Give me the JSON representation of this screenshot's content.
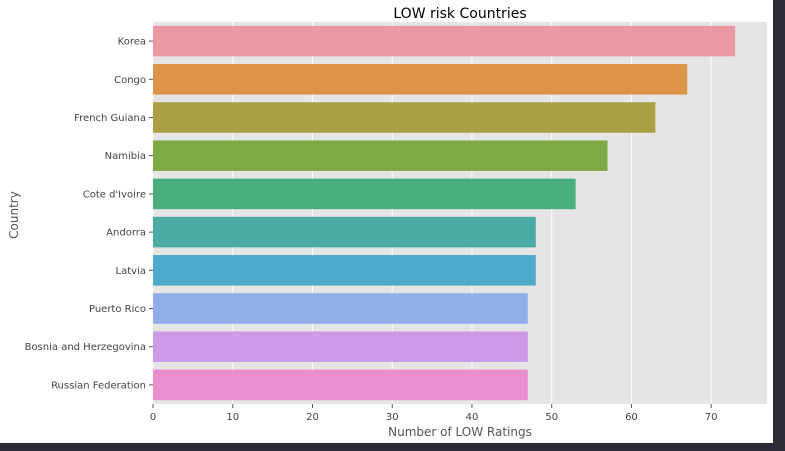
{
  "chart_data": {
    "type": "bar",
    "orientation": "horizontal",
    "title": "LOW risk Countries",
    "xlabel": "Number of LOW Ratings",
    "ylabel": "Country",
    "xlim": [
      0,
      77
    ],
    "xticks": [
      0,
      10,
      20,
      30,
      40,
      50,
      60,
      70
    ],
    "grid": true,
    "categories": [
      "Korea",
      "Congo",
      "French Guiana",
      "Namibia",
      "Cote d'Ivoire",
      "Andorra",
      "Latvia",
      "Puerto Rico",
      "Bosnia and Herzegovina",
      "Russian Federation"
    ],
    "values": [
      73,
      67,
      63,
      57,
      53,
      48,
      48,
      47,
      47,
      47
    ],
    "colors": [
      "#ec98a4",
      "#dc9449",
      "#aca046",
      "#7eaa46",
      "#4aaf7e",
      "#4baca6",
      "#4eaacb",
      "#91aee8",
      "#cd9ae8",
      "#eb8ecd"
    ]
  }
}
